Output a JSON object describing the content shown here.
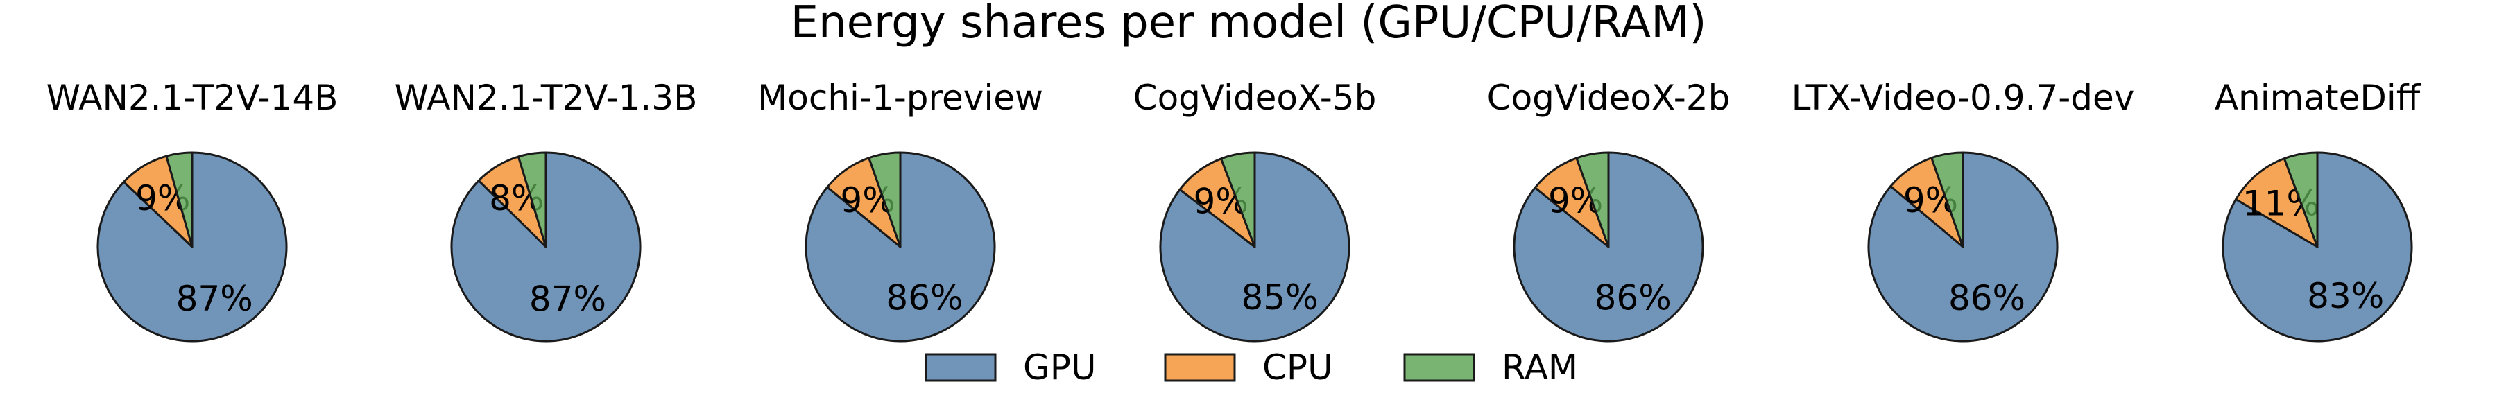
{
  "title": "Energy shares per model (GPU/CPU/RAM)",
  "legend": {
    "placement": "bottom-center",
    "entries": [
      {
        "label": "GPU",
        "color": "#4e79a7"
      },
      {
        "label": "CPU",
        "color": "#f28e2b"
      },
      {
        "label": "RAM",
        "color": "#59a14f"
      }
    ]
  },
  "chart_data": [
    {
      "type": "pie",
      "title": "WAN2.1-T2V-14B",
      "categories": [
        "GPU",
        "CPU",
        "RAM"
      ],
      "values": [
        87.1,
        8.5,
        4.4
      ],
      "labels": [
        "87%",
        "9%",
        ""
      ],
      "startangle": 90,
      "counterclock": false
    },
    {
      "type": "pie",
      "title": "WAN2.1-T2V-1.3B",
      "categories": [
        "GPU",
        "CPU",
        "RAM"
      ],
      "values": [
        87.4,
        7.9,
        4.7
      ],
      "labels": [
        "87%",
        "8%",
        ""
      ],
      "startangle": 90,
      "counterclock": false
    },
    {
      "type": "pie",
      "title": "Mochi-1-preview",
      "categories": [
        "GPU",
        "CPU",
        "RAM"
      ],
      "values": [
        85.9,
        8.7,
        5.4
      ],
      "labels": [
        "86%",
        "9%",
        ""
      ],
      "startangle": 90,
      "counterclock": false
    },
    {
      "type": "pie",
      "title": "CogVideoX-5b",
      "categories": [
        "GPU",
        "CPU",
        "RAM"
      ],
      "values": [
        85.4,
        8.8,
        5.8
      ],
      "labels": [
        "85%",
        "9%",
        ""
      ],
      "startangle": 90,
      "counterclock": false
    },
    {
      "type": "pie",
      "title": "CogVideoX-2b",
      "categories": [
        "GPU",
        "CPU",
        "RAM"
      ],
      "values": [
        85.8,
        8.7,
        5.5
      ],
      "labels": [
        "86%",
        "9%",
        ""
      ],
      "startangle": 90,
      "counterclock": false
    },
    {
      "type": "pie",
      "title": "LTX-Video-0.9.7-dev",
      "categories": [
        "GPU",
        "CPU",
        "RAM"
      ],
      "values": [
        86.1,
        8.5,
        5.4
      ],
      "labels": [
        "86%",
        "9%",
        ""
      ],
      "startangle": 90,
      "counterclock": false
    },
    {
      "type": "pie",
      "title": "AnimateDiff",
      "categories": [
        "GPU",
        "CPU",
        "RAM"
      ],
      "values": [
        83.4,
        10.9,
        5.7
      ],
      "labels": [
        "83%",
        "11%",
        ""
      ],
      "startangle": 90,
      "counterclock": false
    }
  ]
}
